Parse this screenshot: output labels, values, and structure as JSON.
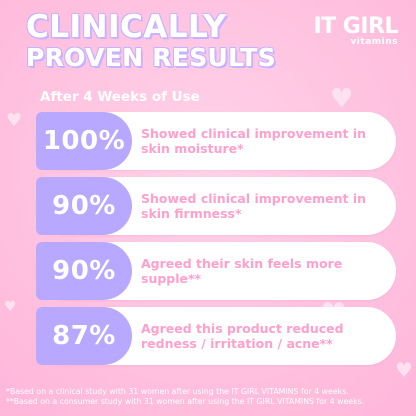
{
  "colors": {
    "background": "#ffc2e0",
    "badge": "#b9a8ff",
    "card": "#ffffff",
    "card_text": "#ff9fcc",
    "title": "#ffffff"
  },
  "header": {
    "title_line1": "CLINICALLY",
    "title_line2": "PROVEN RESULTS",
    "logo_main": "IT GIRL",
    "logo_sub": "vitamins"
  },
  "subtitle": "After 4 Weeks of Use",
  "results": [
    {
      "percent": "100%",
      "text": "Showed clinical improvement in skin moisture*"
    },
    {
      "percent": "90%",
      "text": "Showed clinical improvement in skin firmness*"
    },
    {
      "percent": "90%",
      "text": "Agreed their skin feels more supple**"
    },
    {
      "percent": "87%",
      "text": "Agreed this product reduced redness / irritation / acne**"
    }
  ],
  "footnotes": [
    "*Based on a clinical study with 31 women after using the IT GIRL VITAMINS for 4 weeks.",
    "**Based on a consumer study with 31 women after using the IT GIRL VITAMINS for 4 weeks."
  ]
}
